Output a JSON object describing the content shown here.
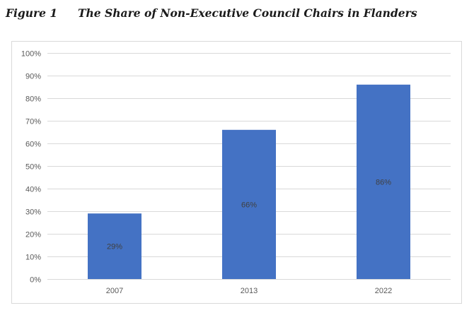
{
  "figure": {
    "label": "Figure 1",
    "title": "The Share of Non-Executive Council Chairs in Flanders"
  },
  "colors": {
    "bar": "#4472c4",
    "grid": "#d9d9d9",
    "tick_text": "#595959",
    "data_label": "#404040"
  },
  "chart_data": {
    "type": "bar",
    "title": "",
    "xlabel": "",
    "ylabel": "",
    "categories": [
      "2007",
      "2013",
      "2022"
    ],
    "values": [
      29,
      66,
      86
    ],
    "data_labels": [
      "29%",
      "66%",
      "86%"
    ],
    "ylim": [
      0,
      100
    ],
    "y_ticks": [
      0,
      10,
      20,
      30,
      40,
      50,
      60,
      70,
      80,
      90,
      100
    ],
    "y_tick_labels": [
      "0%",
      "10%",
      "20%",
      "30%",
      "40%",
      "50%",
      "60%",
      "70%",
      "80%",
      "90%",
      "100%"
    ],
    "grid": true,
    "legend": false
  }
}
